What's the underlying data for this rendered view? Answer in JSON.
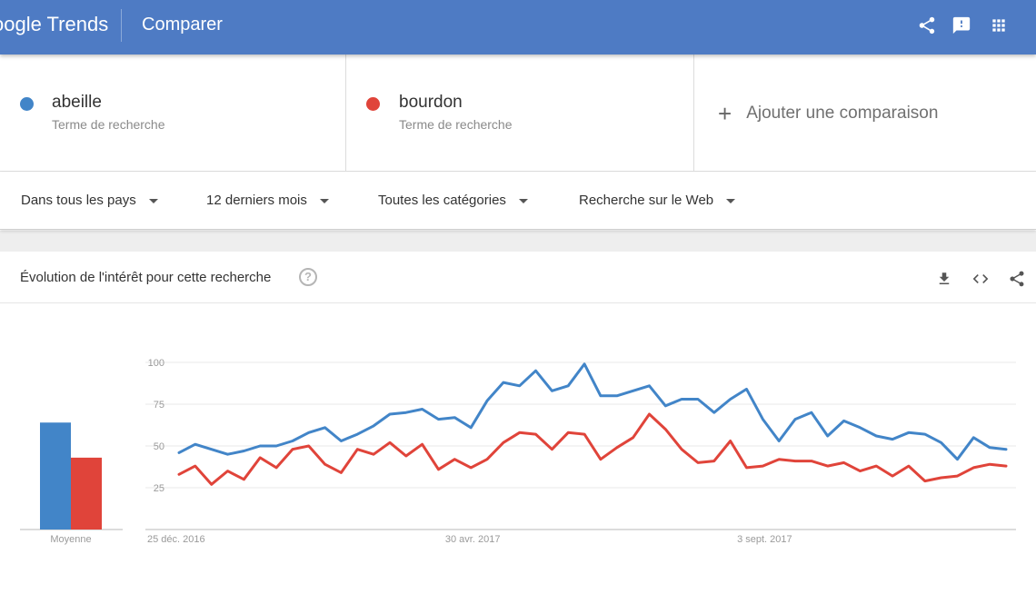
{
  "header": {
    "logo_text": "oogle Trends",
    "page_title": "Comparer",
    "icons": [
      "share-icon",
      "feedback-icon",
      "apps-grid-icon"
    ],
    "bar_color": "#4e7bc4"
  },
  "terms": [
    {
      "name": "abeille",
      "type": "Terme de recherche",
      "color": "#4285c8"
    },
    {
      "name": "bourdon",
      "type": "Terme de recherche",
      "color": "#e0443a"
    }
  ],
  "add_comparison": {
    "icon": "plus-icon",
    "label": "Ajouter une comparaison"
  },
  "filters": [
    {
      "label": "Dans tous les pays"
    },
    {
      "label": "12 derniers mois"
    },
    {
      "label": "Toutes les catégories"
    },
    {
      "label": "Recherche sur le Web"
    }
  ],
  "card": {
    "title": "Évolution de l'intérêt pour cette recherche",
    "help_symbol": "?",
    "icons": [
      "download-icon",
      "embed-code-icon",
      "share-icon"
    ]
  },
  "chart_data": {
    "type": "line",
    "y_ticks": [
      25,
      50,
      75,
      100
    ],
    "ylim": [
      0,
      100
    ],
    "x_tick_labels": [
      {
        "label": "25 déc. 2016",
        "index": 0
      },
      {
        "label": "30 avr. 2017",
        "index": 18
      },
      {
        "label": "3 sept. 2017",
        "index": 36
      }
    ],
    "average_label": "Moyenne",
    "series": [
      {
        "name": "abeille",
        "color": "#4285c8",
        "average": 64,
        "values": [
          46,
          51,
          48,
          45,
          47,
          50,
          50,
          53,
          58,
          61,
          53,
          57,
          62,
          69,
          70,
          72,
          66,
          67,
          61,
          77,
          88,
          86,
          95,
          83,
          86,
          99,
          80,
          80,
          83,
          86,
          74,
          78,
          78,
          70,
          78,
          84,
          66,
          53,
          66,
          70,
          56,
          65,
          61,
          56,
          54,
          58,
          57,
          52,
          42,
          55,
          49,
          48
        ]
      },
      {
        "name": "bourdon",
        "color": "#e0443a",
        "average": 43,
        "values": [
          33,
          38,
          27,
          35,
          30,
          43,
          37,
          48,
          50,
          39,
          34,
          48,
          45,
          52,
          44,
          51,
          36,
          42,
          37,
          42,
          52,
          58,
          57,
          48,
          58,
          57,
          42,
          49,
          55,
          69,
          60,
          48,
          40,
          41,
          53,
          37,
          38,
          42,
          41,
          41,
          38,
          40,
          35,
          38,
          32,
          38,
          29,
          31,
          32,
          37,
          39,
          38
        ]
      }
    ]
  }
}
